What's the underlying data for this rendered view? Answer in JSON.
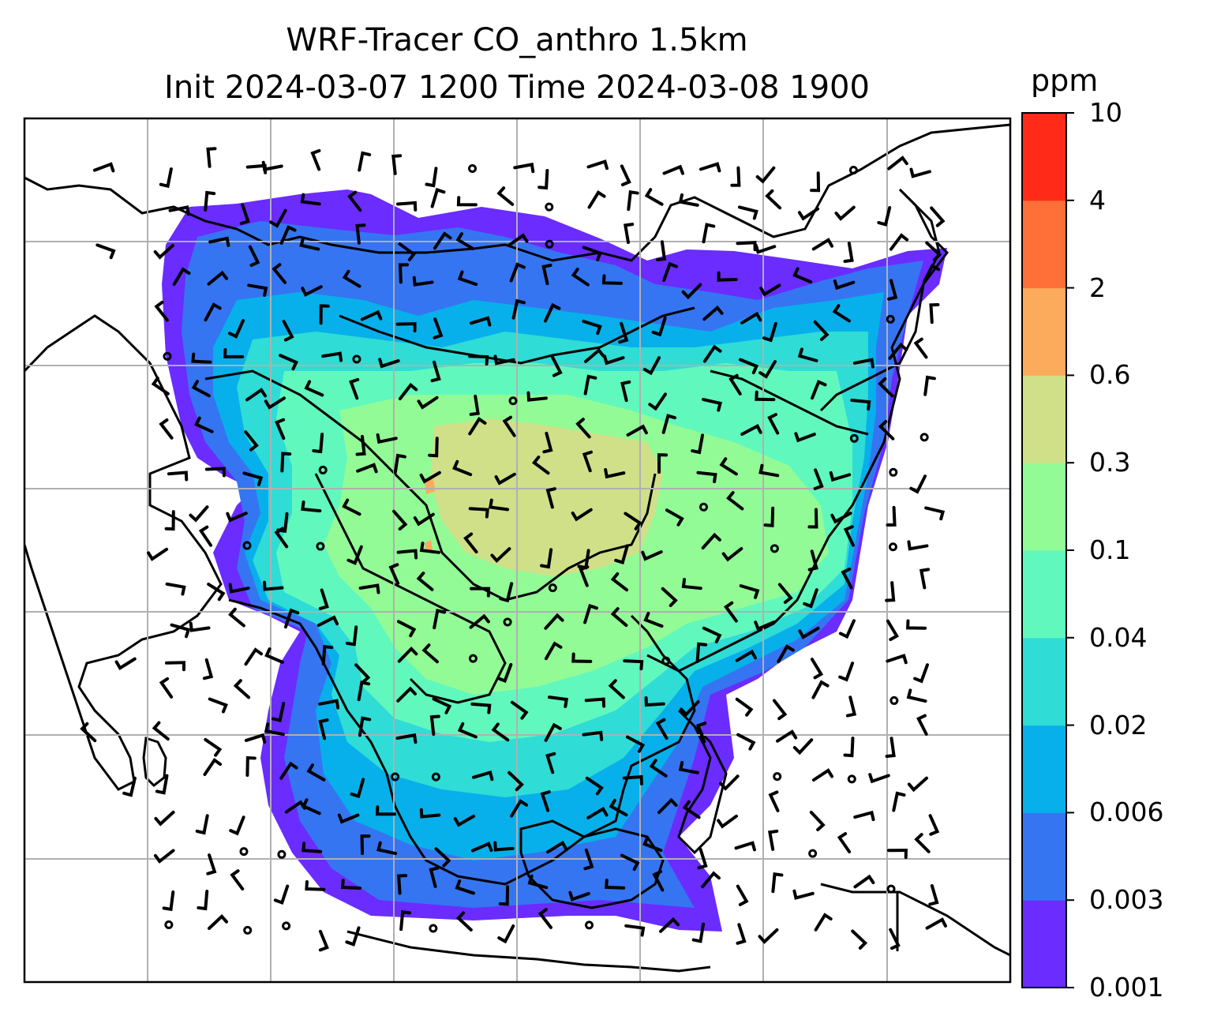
{
  "title": {
    "line1": "WRF-Tracer CO_anthro 1.5km",
    "line2": "Init 2024-03-07 1200 Time 2024-03-08 1900"
  },
  "colorbar": {
    "unit": "ppm",
    "levels": [
      "0.001",
      "0.003",
      "0.006",
      "0.02",
      "0.04",
      "0.1",
      "0.3",
      "0.6",
      "2",
      "4",
      "10"
    ],
    "colors": [
      "#6a2cff",
      "#3575f2",
      "#07b0ea",
      "#2fdcd6",
      "#61f8bd",
      "#92fb96",
      "#cfe089",
      "#fcab5d",
      "#ff7038",
      "#ff2a17"
    ]
  },
  "map": {
    "features": [
      "coastlines",
      "country-borders",
      "lat-lon-gridlines",
      "wind-barbs",
      "tracer-concentration-fill"
    ],
    "gridlines": true,
    "background": "#ffffff",
    "gridline_color": "#b0b0b0"
  }
}
